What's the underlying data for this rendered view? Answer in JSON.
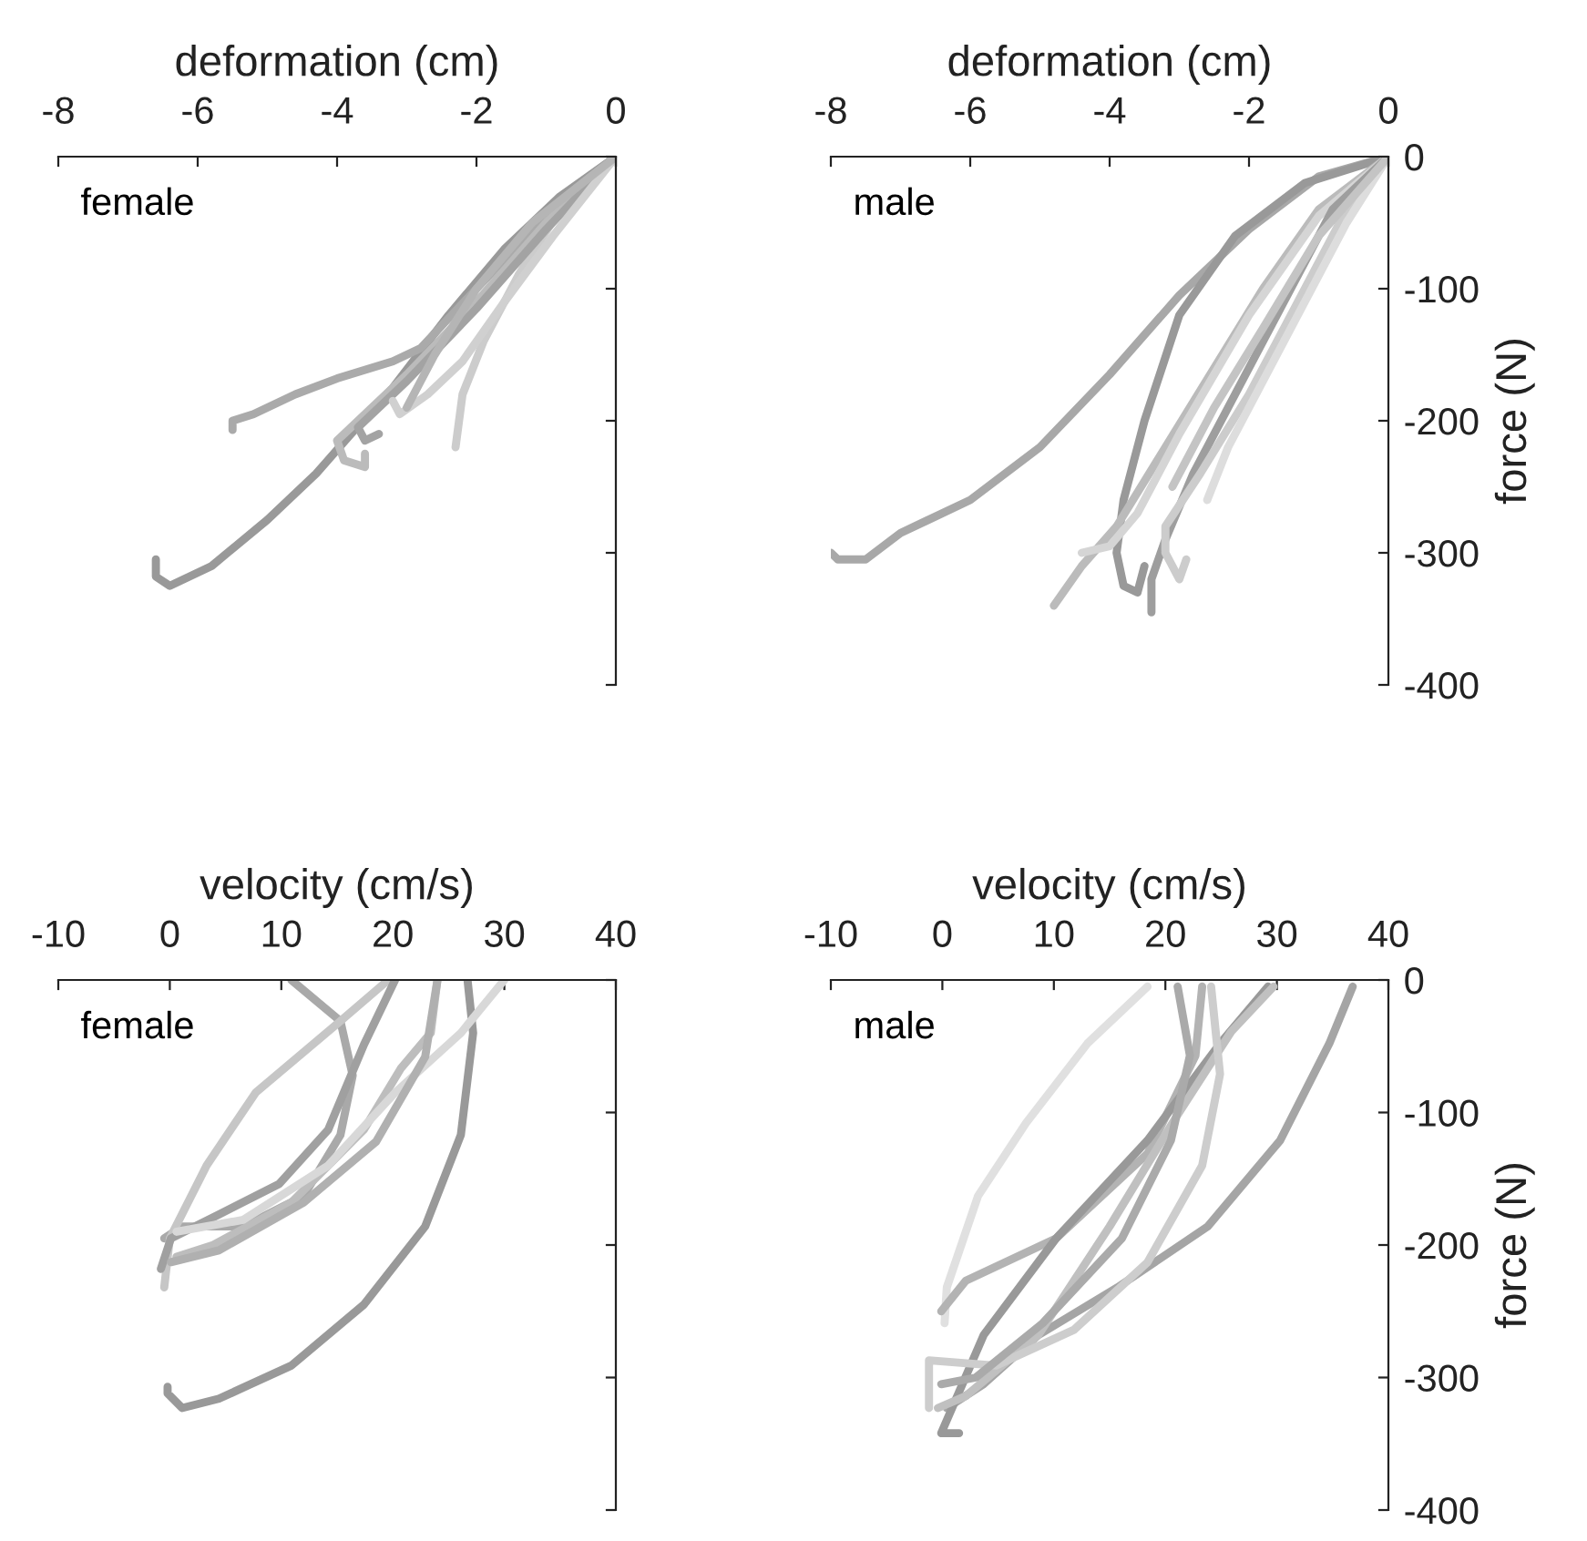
{
  "chart_data": [
    {
      "type": "line",
      "xlabel": "deformation (cm)",
      "annotations": [
        "female"
      ],
      "xlim": [
        -8,
        0
      ],
      "xticks": [
        -8,
        -6,
        -4,
        -2,
        0
      ],
      "ylim": [
        -400,
        0
      ],
      "yticks": [
        {
          "value": 0,
          "label": null
        },
        {
          "value": -100,
          "label": null
        },
        {
          "value": -200,
          "label": null
        },
        {
          "value": -300,
          "label": null
        },
        {
          "value": -400,
          "label": null
        }
      ],
      "tick_labels": "x",
      "grid": false,
      "legend": false,
      "marker": "none",
      "line_style": "solid",
      "series": [
        {
          "color": "#999999",
          "x": [
            0,
            -0.8,
            -1.6,
            -2.4,
            -3.2,
            -3.8,
            -4.3,
            -5.0,
            -5.8,
            -6.4,
            -6.6,
            -6.6
          ],
          "values": [
            0,
            -30,
            -70,
            -120,
            -175,
            -210,
            -240,
            -275,
            -310,
            -325,
            -318,
            -305
          ]
        },
        {
          "color": "#aaaaaa",
          "x": [
            0,
            -1,
            -2,
            -2.8,
            -3.2,
            -4,
            -4.6,
            -5.2,
            -5.5,
            -5.5
          ],
          "values": [
            0,
            -45,
            -100,
            -145,
            -155,
            -168,
            -180,
            -195,
            -200,
            -207
          ]
        },
        {
          "color": "#cccccc",
          "x": [
            0,
            -0.8,
            -1.4,
            -1.9,
            -2.2,
            -2.3
          ],
          "values": [
            0,
            -40,
            -90,
            -140,
            -180,
            -220
          ]
        },
        {
          "color": "#bbbbbb",
          "x": [
            0,
            -1,
            -2,
            -3,
            -3.7,
            -4,
            -3.9,
            -3.6,
            -3.6
          ],
          "values": [
            0,
            -50,
            -110,
            -165,
            -200,
            -215,
            -230,
            -235,
            -225
          ]
        },
        {
          "color": "#a3a3a3",
          "x": [
            0,
            -1,
            -2,
            -3,
            -3.7,
            -3.6,
            -3.4
          ],
          "values": [
            0,
            -55,
            -115,
            -170,
            -205,
            -215,
            -210
          ]
        },
        {
          "color": "#d0d0d0",
          "x": [
            0,
            -0.9,
            -1.6,
            -2.2,
            -2.7,
            -3.1,
            -3.2
          ],
          "values": [
            0,
            -60,
            -110,
            -155,
            -180,
            -195,
            -185
          ]
        },
        {
          "color": "#b5b5b5",
          "x": [
            0,
            -1.2,
            -2.0,
            -2.6,
            -2.9,
            -3.0
          ],
          "values": [
            0,
            -50,
            -100,
            -150,
            -180,
            -190
          ]
        }
      ]
    },
    {
      "type": "line",
      "xlabel": "deformation (cm)",
      "ylabel": "force (N)",
      "annotations": [
        "male"
      ],
      "xlim": [
        -8,
        0
      ],
      "xticks": [
        -8,
        -6,
        -4,
        -2,
        0
      ],
      "ylim": [
        -400,
        0
      ],
      "yticks": [
        0,
        -100,
        -200,
        -300,
        -400
      ],
      "grid": false,
      "legend": false,
      "marker": "none",
      "line_style": "solid",
      "series": [
        {
          "color": "#a8a8a8",
          "x": [
            0,
            -1,
            -2,
            -3,
            -4,
            -5,
            -6,
            -7,
            -7.5,
            -7.9,
            -8
          ],
          "values": [
            0,
            -15,
            -55,
            -105,
            -165,
            -220,
            -260,
            -285,
            -305,
            -305,
            -300
          ]
        },
        {
          "color": "#999999",
          "x": [
            0,
            -1.2,
            -2.2,
            -3,
            -3.5,
            -3.8,
            -3.9,
            -3.8,
            -3.6,
            -3.5
          ],
          "values": [
            0,
            -20,
            -60,
            -120,
            -200,
            -260,
            -300,
            -325,
            -330,
            -310
          ]
        },
        {
          "color": "#bbbbbb",
          "x": [
            0,
            -1,
            -1.8,
            -2.5,
            -3.2,
            -3.9,
            -4.4,
            -4.8
          ],
          "values": [
            0,
            -40,
            -100,
            -160,
            -220,
            -280,
            -310,
            -340
          ]
        },
        {
          "color": "#d5d5d5",
          "x": [
            0,
            -1,
            -2,
            -3,
            -3.6,
            -4.0,
            -4.4
          ],
          "values": [
            0,
            -45,
            -120,
            -210,
            -270,
            -295,
            -300
          ]
        },
        {
          "color": "#9e9e9e",
          "x": [
            0,
            -0.8,
            -1.5,
            -2.2,
            -2.8,
            -3.2,
            -3.4,
            -3.4
          ],
          "values": [
            0,
            -40,
            -110,
            -180,
            -240,
            -290,
            -320,
            -345
          ]
        },
        {
          "color": "#cccccc",
          "x": [
            0,
            -0.7,
            -1.3,
            -2,
            -2.7,
            -3.2,
            -3.2,
            -3.0,
            -2.9
          ],
          "values": [
            0,
            -50,
            -110,
            -180,
            -240,
            -280,
            -300,
            -320,
            -305
          ]
        },
        {
          "color": "#dddddd",
          "x": [
            0,
            -0.6,
            -1.2,
            -1.8,
            -2.3,
            -2.6
          ],
          "values": [
            0,
            -50,
            -110,
            -170,
            -220,
            -260
          ]
        },
        {
          "color": "#c4c4c4",
          "x": [
            0,
            -1,
            -1.8,
            -2.5,
            -3.1
          ],
          "values": [
            0,
            -60,
            -130,
            -190,
            -250
          ]
        }
      ]
    },
    {
      "type": "line",
      "xlabel": "velocity (cm/s)",
      "annotations": [
        "female"
      ],
      "xlim": [
        -10,
        40
      ],
      "xticks": [
        -10,
        0,
        10,
        20,
        30,
        40
      ],
      "ylim": [
        -400,
        0
      ],
      "yticks": [
        {
          "value": 0,
          "label": null
        },
        {
          "value": -100,
          "label": null
        },
        {
          "value": -200,
          "label": null
        },
        {
          "value": -300,
          "label": null
        },
        {
          "value": -400,
          "label": null
        }
      ],
      "tick_labels": "x",
      "grid": false,
      "legend": false,
      "marker": "none",
      "line_style": "solid",
      "series": [
        {
          "color": "#999999",
          "x": [
            26.7,
            27.2,
            26.1,
            22.9,
            17.4,
            10.9,
            4.4,
            1.1,
            -0.2,
            -0.2
          ],
          "values": [
            0,
            -40,
            -117,
            -186,
            -245,
            -291,
            -316,
            -323,
            -312,
            -307
          ]
        },
        {
          "color": "#a9a9a9",
          "x": [
            10.9,
            15.3,
            16.4,
            15.3,
            12,
            6.6,
            1.1,
            -0.5
          ],
          "values": [
            0,
            -31,
            -72,
            -117,
            -163,
            -186,
            -186,
            -195
          ]
        },
        {
          "color": "#c6c6c6",
          "x": [
            19.6,
            15.3,
            7.7,
            3.3,
            0,
            -0.5
          ],
          "values": [
            0,
            -31,
            -85,
            -140,
            -195,
            -232
          ]
        },
        {
          "color": "#a0a0a0",
          "x": [
            20.2,
            17.4,
            14.2,
            9.8,
            4.4,
            0.1,
            -0.8
          ],
          "values": [
            0,
            -49,
            -113,
            -154,
            -177,
            -195,
            -218
          ]
        },
        {
          "color": "#bdbdbd",
          "x": [
            24,
            23.4,
            20.7,
            17.4,
            10.9,
            3.9,
            0.6
          ],
          "values": [
            0,
            -40,
            -67,
            -113,
            -168,
            -200,
            -209
          ]
        },
        {
          "color": "#d8d8d8",
          "x": [
            30,
            26.1,
            20.2,
            14.2,
            6.6,
            0.6
          ],
          "values": [
            0,
            -40,
            -85,
            -140,
            -181,
            -190
          ]
        },
        {
          "color": "#b0b0b0",
          "x": [
            24,
            22.9,
            18.5,
            12,
            4.4,
            0.1
          ],
          "values": [
            0,
            -58,
            -122,
            -168,
            -204,
            -213
          ]
        }
      ]
    },
    {
      "type": "line",
      "xlabel": "velocity (cm/s)",
      "ylabel": "force (N)",
      "annotations": [
        "male"
      ],
      "xlim": [
        -10,
        40
      ],
      "xticks": [
        -10,
        0,
        10,
        20,
        30,
        40
      ],
      "ylim": [
        -400,
        0
      ],
      "yticks": [
        0,
        -100,
        -200,
        -300,
        -400
      ],
      "grid": false,
      "legend": false,
      "marker": "none",
      "line_style": "solid",
      "series": [
        {
          "color": "#a5a5a5",
          "x": [
            36.8,
            34.7,
            30.3,
            23.8,
            15.7,
            8.6,
            3.7,
            0.4
          ],
          "values": [
            -5,
            -48,
            -121,
            -186,
            -232,
            -268,
            -305,
            -323
          ]
        },
        {
          "color": "#e0e0e0",
          "x": [
            18.4,
            13,
            7.5,
            3.2,
            0.4,
            0.2
          ],
          "values": [
            -5,
            -48,
            -108,
            -163,
            -232,
            -259
          ]
        },
        {
          "color": "#b3b3b3",
          "x": [
            23.3,
            22.7,
            18.4,
            10.2,
            2.1,
            -0.1
          ],
          "values": [
            -5,
            -57,
            -131,
            -195,
            -227,
            -250
          ]
        },
        {
          "color": "#999999",
          "x": [
            29.2,
            24.9,
            18.4,
            10.2,
            3.7,
            -0.1,
            1.5
          ],
          "values": [
            -5,
            -48,
            -121,
            -195,
            -268,
            -342,
            -342
          ]
        },
        {
          "color": "#c0c0c0",
          "x": [
            29.7,
            25.9,
            21,
            15,
            8.6,
            2.1,
            -0.4
          ],
          "values": [
            -5,
            -39,
            -103,
            -186,
            -268,
            -314,
            -323
          ]
        },
        {
          "color": "#cdcdcd",
          "x": [
            24.1,
            24.9,
            23.3,
            18.4,
            11.8,
            4.8,
            -1.2,
            -1.2
          ],
          "values": [
            -5,
            -71,
            -140,
            -213,
            -264,
            -291,
            -287,
            -323
          ]
        },
        {
          "color": "#aaaaaa",
          "x": [
            21.1,
            22.2,
            20.5,
            16.1,
            9,
            3,
            -0.1
          ],
          "values": [
            -5,
            -57,
            -121,
            -195,
            -259,
            -300,
            -305
          ]
        }
      ]
    }
  ]
}
